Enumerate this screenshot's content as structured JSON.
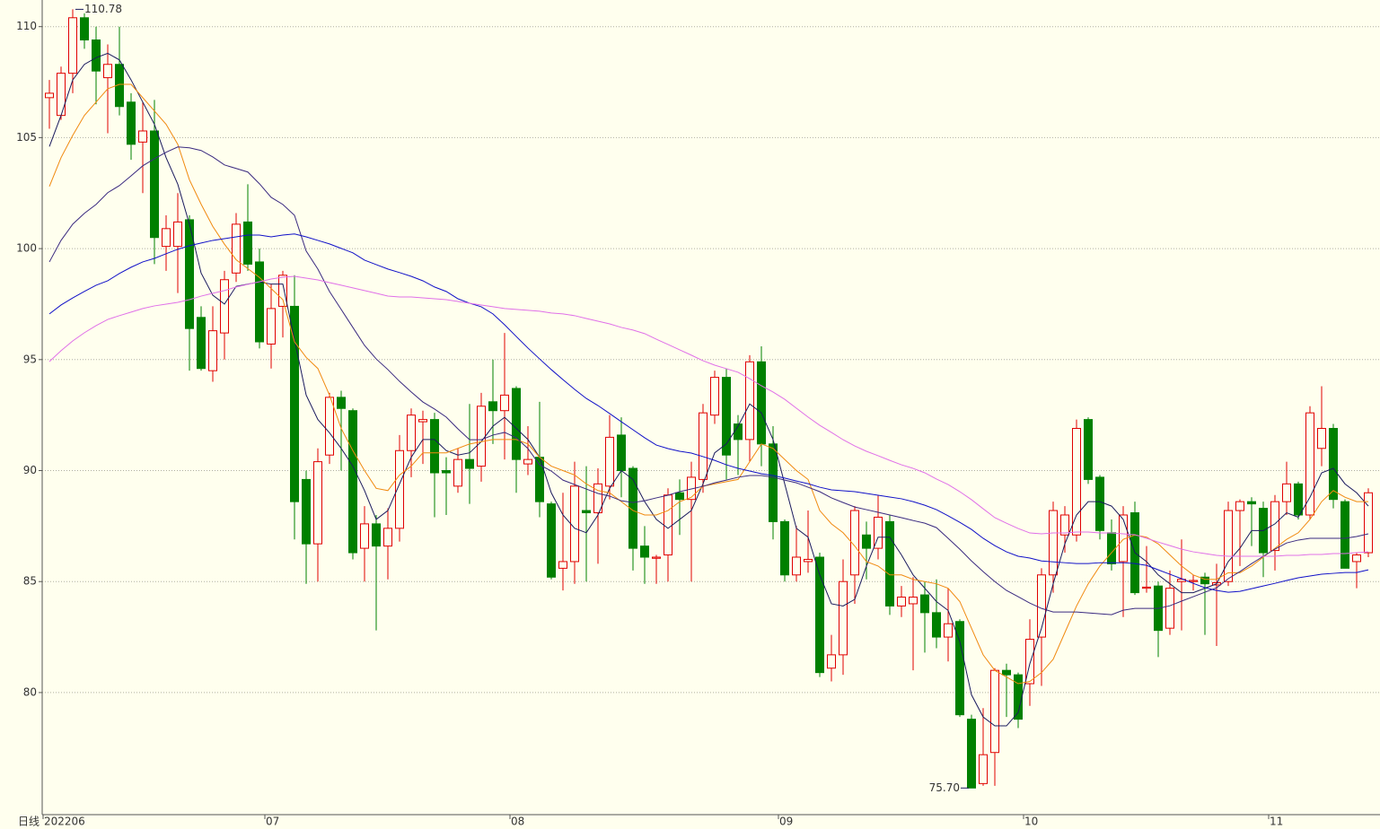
{
  "chart_data": {
    "type": "candlestick",
    "period_label": "日线",
    "categories": [
      "202206",
      null,
      null,
      null,
      null,
      null,
      null,
      null,
      null,
      null,
      null,
      null,
      null,
      null,
      null,
      null,
      null,
      null,
      null,
      "07",
      null,
      null,
      null,
      null,
      null,
      null,
      null,
      null,
      null,
      null,
      null,
      null,
      null,
      null,
      null,
      null,
      null,
      null,
      null,
      null,
      "08",
      null,
      null,
      null,
      null,
      null,
      null,
      null,
      null,
      null,
      null,
      null,
      null,
      null,
      null,
      null,
      null,
      null,
      null,
      null,
      null,
      null,
      null,
      "09",
      null,
      null,
      null,
      null,
      null,
      null,
      null,
      null,
      null,
      null,
      null,
      null,
      null,
      null,
      null,
      null,
      null,
      null,
      null,
      null,
      "10",
      null,
      null,
      null,
      null,
      null,
      null,
      null,
      null,
      null,
      null,
      null,
      null,
      null,
      null,
      null,
      null,
      null,
      null,
      null,
      null,
      "11",
      null,
      null,
      null,
      null,
      null,
      null,
      null,
      null
    ],
    "open": [
      106.8,
      106.0,
      107.9,
      110.4,
      109.4,
      107.7,
      108.3,
      106.6,
      104.8,
      105.3,
      100.1,
      100.1,
      101.3,
      96.9,
      94.5,
      96.2,
      98.9,
      101.2,
      99.4,
      95.7,
      97.4,
      97.4,
      89.6,
      86.7,
      90.7,
      93.3,
      92.7,
      86.5,
      87.6,
      86.6,
      87.4,
      90.9,
      92.2,
      92.3,
      90.0,
      89.3,
      90.5,
      90.2,
      93.1,
      92.7,
      93.7,
      90.3,
      90.6,
      88.5,
      85.6,
      85.9,
      88.2,
      88.1,
      89.3,
      91.6,
      90.1,
      86.6,
      86.05,
      86.2,
      89.0,
      88.7,
      89.6,
      92.5,
      94.2,
      92.1,
      91.4,
      94.9,
      91.2,
      87.7,
      85.3,
      85.9,
      86.1,
      81.1,
      81.7,
      85.3,
      87.1,
      86.5,
      87.7,
      83.9,
      84.0,
      84.4,
      83.6,
      82.5,
      83.2,
      78.8,
      75.9,
      77.3,
      81.0,
      80.8,
      80.4,
      82.5,
      85.3,
      87.1,
      87.1,
      92.3,
      89.7,
      87.2,
      85.9,
      88.1,
      84.7,
      84.8,
      82.9,
      85.0,
      85.0,
      85.2,
      84.85,
      85.0,
      88.2,
      88.6,
      88.3,
      86.4,
      88.6,
      89.4,
      88.0,
      91.0,
      91.9,
      88.6,
      85.9,
      86.3
    ],
    "high": [
      107.6,
      108.2,
      110.78,
      110.6,
      110.0,
      109.2,
      110.0,
      107.0,
      106.6,
      106.7,
      101.5,
      102.5,
      101.5,
      97.4,
      97.4,
      99.0,
      101.6,
      102.9,
      100.0,
      98.4,
      99.0,
      98.8,
      90.0,
      91.0,
      93.5,
      93.6,
      92.8,
      88.4,
      88.0,
      88.3,
      91.6,
      92.8,
      92.7,
      92.6,
      90.6,
      91.0,
      93.0,
      93.5,
      95.0,
      96.2,
      93.8,
      92.0,
      93.1,
      88.6,
      89.0,
      90.4,
      90.2,
      90.1,
      92.5,
      92.4,
      90.2,
      87.5,
      86.2,
      89.2,
      89.6,
      90.4,
      93.0,
      94.5,
      94.6,
      92.5,
      95.2,
      95.6,
      92.0,
      87.8,
      87.5,
      88.2,
      86.3,
      82.6,
      86.0,
      88.4,
      87.7,
      88.9,
      88.0,
      84.8,
      85.2,
      85.0,
      85.1,
      84.7,
      83.3,
      79.0,
      79.3,
      81.1,
      81.3,
      80.9,
      83.3,
      85.6,
      88.6,
      88.4,
      92.3,
      92.4,
      89.8,
      87.8,
      88.4,
      88.6,
      86.6,
      85.0,
      85.5,
      86.9,
      85.3,
      85.4,
      85.8,
      88.6,
      88.7,
      88.8,
      88.6,
      88.9,
      90.4,
      89.5,
      92.9,
      93.8,
      92.1,
      88.7,
      86.3,
      89.2
    ],
    "low": [
      105.4,
      105.8,
      107.0,
      109.0,
      106.5,
      105.2,
      106.0,
      104.0,
      102.5,
      99.3,
      99.0,
      98.0,
      94.5,
      94.5,
      94.0,
      95.0,
      98.5,
      99.0,
      95.5,
      94.6,
      96.0,
      86.9,
      84.9,
      85.0,
      90.3,
      90.0,
      86.0,
      85.0,
      82.8,
      85.1,
      86.8,
      89.7,
      90.3,
      87.9,
      88.0,
      89.0,
      88.5,
      89.5,
      91.2,
      90.5,
      89.0,
      89.8,
      87.9,
      85.1,
      84.6,
      84.9,
      85.0,
      85.8,
      88.7,
      88.8,
      85.5,
      84.9,
      84.9,
      85.0,
      87.1,
      85.0,
      89.0,
      92.1,
      89.6,
      89.8,
      90.4,
      90.2,
      86.9,
      85.0,
      85.0,
      85.4,
      80.7,
      80.5,
      80.8,
      84.0,
      85.1,
      86.0,
      83.5,
      83.4,
      81.0,
      81.8,
      82.0,
      81.4,
      78.9,
      75.7,
      75.8,
      75.8,
      78.9,
      78.4,
      79.4,
      80.3,
      84.5,
      86.3,
      86.8,
      89.4,
      86.9,
      85.5,
      83.4,
      84.4,
      84.5,
      81.6,
      82.6,
      82.8,
      84.6,
      82.6,
      82.1,
      84.8,
      85.7,
      86.6,
      85.2,
      85.5,
      88.0,
      87.8,
      87.8,
      90.2,
      88.3,
      85.6,
      84.7,
      86.1
    ],
    "close": [
      107.0,
      107.9,
      110.4,
      109.4,
      108.0,
      108.3,
      106.4,
      104.7,
      105.3,
      100.5,
      100.9,
      101.2,
      96.4,
      94.6,
      96.3,
      98.6,
      101.1,
      99.3,
      95.8,
      97.3,
      98.8,
      88.6,
      86.7,
      90.4,
      93.3,
      92.8,
      86.3,
      87.6,
      86.6,
      87.4,
      90.9,
      92.5,
      92.3,
      89.9,
      89.9,
      90.5,
      90.1,
      92.9,
      92.7,
      93.4,
      90.5,
      90.5,
      88.6,
      85.2,
      85.9,
      89.3,
      88.1,
      89.4,
      91.5,
      90.0,
      86.5,
      86.1,
      86.1,
      88.9,
      88.7,
      89.7,
      92.6,
      94.2,
      90.7,
      91.4,
      94.9,
      91.2,
      87.7,
      85.3,
      86.1,
      86.0,
      80.9,
      81.7,
      85.0,
      88.2,
      86.5,
      87.9,
      83.9,
      84.3,
      84.3,
      83.6,
      82.5,
      83.1,
      79.0,
      75.7,
      77.2,
      81.0,
      80.8,
      78.8,
      82.4,
      85.3,
      88.2,
      88.0,
      91.9,
      89.6,
      87.3,
      85.8,
      88.0,
      84.5,
      84.75,
      82.8,
      84.7,
      85.1,
      85.05,
      84.9,
      84.95,
      88.2,
      88.6,
      88.5,
      86.3,
      88.6,
      89.4,
      88.0,
      92.6,
      91.9,
      88.7,
      85.6,
      86.2,
      89.0
    ],
    "moving_averages": [
      {
        "color": "#1a1a5e",
        "values": [
          104.6,
          106.0,
          107.6,
          108.3,
          108.6,
          108.8,
          108.5,
          107.6,
          106.6,
          105.6,
          104.1,
          102.9,
          101.1,
          98.9,
          97.9,
          97.5,
          98.3,
          98.4,
          98.5,
          98.4,
          98.4,
          95.9,
          93.4,
          92.3,
          91.7,
          91.0,
          90.2,
          89.1,
          87.8,
          88.2,
          89.4,
          90.6,
          91.4,
          91.4,
          90.9,
          90.7,
          90.8,
          91.3,
          92.0,
          92.4,
          91.9,
          91.4,
          90.6,
          89.0,
          88.0,
          87.4,
          87.2,
          88.0,
          89.2,
          90.0,
          89.6,
          88.6,
          87.8,
          87.4,
          87.8,
          88.2,
          89.4,
          90.8,
          91.2,
          92.0,
          93.0,
          92.6,
          91.4,
          89.4,
          87.4,
          87.0,
          85.3,
          84.0,
          83.9,
          84.2,
          85.7,
          87.0,
          87.0,
          86.2,
          85.3,
          84.7,
          84.1,
          83.7,
          82.3,
          79.9,
          78.9,
          78.5,
          78.5,
          79.1,
          81.3,
          82.9,
          84.9,
          86.7,
          88.0,
          88.6,
          88.6,
          88.4,
          87.8,
          86.3,
          85.9,
          85.3,
          84.9,
          84.5,
          84.5,
          84.7,
          84.9,
          85.9,
          86.5,
          87.3,
          87.3,
          87.6,
          88.1,
          87.9,
          88.8,
          89.9,
          90.1,
          89.4,
          89.0,
          88.4
        ]
      },
      {
        "color": "#f08a10",
        "values": [
          102.8,
          104.1,
          105.1,
          106.0,
          106.6,
          107.2,
          107.4,
          107.4,
          106.8,
          106.2,
          105.6,
          104.7,
          103.1,
          102.0,
          101.0,
          100.2,
          99.5,
          99.1,
          98.7,
          98.2,
          97.7,
          95.8,
          95.1,
          94.6,
          93.4,
          91.9,
          90.9,
          90.0,
          89.2,
          89.1,
          89.8,
          90.2,
          90.8,
          90.8,
          90.8,
          91.0,
          91.2,
          91.3,
          91.4,
          91.4,
          91.4,
          91.2,
          90.6,
          90.2,
          90.0,
          89.8,
          89.4,
          89.1,
          89.0,
          88.6,
          88.2,
          88.0,
          88.0,
          88.2,
          88.6,
          88.8,
          89.3,
          89.4,
          89.5,
          89.6,
          90.4,
          91.2,
          91.0,
          90.5,
          90.0,
          89.6,
          88.2,
          87.6,
          87.2,
          86.6,
          85.9,
          85.7,
          85.3,
          85.3,
          85.1,
          85.0,
          84.9,
          84.7,
          84.1,
          82.9,
          81.7,
          81.0,
          80.7,
          80.4,
          80.5,
          80.9,
          81.5,
          82.7,
          83.9,
          84.9,
          85.7,
          86.3,
          86.9,
          87.1,
          87.0,
          86.7,
          86.2,
          85.7,
          85.3,
          85.1,
          85.1,
          85.4,
          85.4,
          85.7,
          86.1,
          86.5,
          86.9,
          87.2,
          87.8,
          88.6,
          89.1,
          88.8,
          88.6,
          88.6
        ]
      },
      {
        "color": "#3a2a80",
        "values": [
          99.4,
          100.37,
          101.1,
          101.59,
          101.99,
          102.52,
          102.84,
          103.28,
          103.73,
          104.05,
          104.34,
          104.58,
          104.54,
          104.42,
          104.13,
          103.77,
          103.61,
          103.45,
          102.92,
          102.31,
          101.99,
          101.5,
          99.89,
          99.08,
          98.07,
          97.26,
          96.45,
          95.64,
          95.03,
          94.55,
          94.02,
          93.54,
          93.09,
          92.77,
          92.41,
          91.88,
          91.39,
          91.39,
          91.6,
          91.72,
          91.48,
          90.99,
          90.26,
          89.98,
          89.57,
          89.37,
          89.17,
          88.97,
          88.85,
          88.64,
          88.56,
          88.64,
          88.77,
          88.89,
          89.05,
          89.17,
          89.29,
          89.45,
          89.57,
          89.7,
          89.78,
          89.78,
          89.7,
          89.57,
          89.45,
          89.25,
          89.05,
          88.77,
          88.56,
          88.36,
          88.24,
          88.12,
          88.0,
          87.88,
          87.75,
          87.63,
          87.43,
          86.95,
          86.46,
          85.93,
          85.45,
          85.0,
          84.6,
          84.32,
          84.03,
          83.79,
          83.63,
          83.63,
          83.63,
          83.59,
          83.55,
          83.51,
          83.71,
          83.79,
          83.79,
          83.79,
          83.91,
          84.12,
          84.32,
          84.52,
          84.72,
          85.13,
          85.45,
          85.81,
          86.14,
          86.46,
          86.74,
          86.87,
          86.95,
          86.95,
          86.95,
          86.95,
          87.03,
          87.15
        ]
      },
      {
        "color": "#1010c8",
        "values": [
          97.06,
          97.46,
          97.78,
          98.07,
          98.35,
          98.55,
          98.88,
          99.16,
          99.4,
          99.56,
          99.77,
          99.97,
          100.13,
          100.25,
          100.37,
          100.45,
          100.53,
          100.61,
          100.61,
          100.53,
          100.61,
          100.66,
          100.53,
          100.37,
          100.21,
          100.01,
          99.81,
          99.48,
          99.28,
          99.08,
          98.92,
          98.75,
          98.55,
          98.27,
          98.07,
          97.74,
          97.54,
          97.38,
          97.06,
          96.57,
          96.04,
          95.52,
          95.03,
          94.55,
          94.1,
          93.66,
          93.25,
          92.93,
          92.57,
          92.2,
          91.84,
          91.48,
          91.15,
          90.99,
          90.87,
          90.79,
          90.63,
          90.46,
          90.26,
          90.1,
          89.98,
          89.86,
          89.78,
          89.66,
          89.53,
          89.41,
          89.25,
          89.13,
          89.09,
          89.05,
          88.97,
          88.89,
          88.81,
          88.73,
          88.6,
          88.44,
          88.24,
          87.96,
          87.67,
          87.35,
          86.95,
          86.62,
          86.34,
          86.14,
          86.06,
          85.93,
          85.89,
          85.85,
          85.81,
          85.81,
          85.85,
          85.85,
          85.85,
          85.81,
          85.73,
          85.53,
          85.33,
          85.13,
          84.92,
          84.72,
          84.6,
          84.52,
          84.56,
          84.68,
          84.8,
          84.92,
          85.05,
          85.17,
          85.25,
          85.33,
          85.37,
          85.41,
          85.41,
          85.53
        ]
      },
      {
        "color": "#e070e8",
        "values": [
          94.91,
          95.4,
          95.84,
          96.21,
          96.53,
          96.81,
          96.98,
          97.14,
          97.3,
          97.42,
          97.5,
          97.58,
          97.7,
          97.86,
          97.99,
          98.11,
          98.27,
          98.39,
          98.51,
          98.63,
          98.71,
          98.75,
          98.67,
          98.59,
          98.47,
          98.35,
          98.23,
          98.11,
          97.99,
          97.86,
          97.82,
          97.82,
          97.78,
          97.74,
          97.7,
          97.62,
          97.54,
          97.46,
          97.38,
          97.3,
          97.26,
          97.22,
          97.18,
          97.1,
          97.06,
          96.98,
          96.85,
          96.73,
          96.61,
          96.45,
          96.33,
          96.17,
          95.92,
          95.68,
          95.44,
          95.2,
          94.95,
          94.75,
          94.59,
          94.43,
          94.14,
          93.82,
          93.54,
          93.21,
          92.81,
          92.41,
          92.04,
          91.72,
          91.39,
          91.11,
          90.87,
          90.67,
          90.46,
          90.26,
          90.1,
          89.9,
          89.62,
          89.37,
          89.05,
          88.69,
          88.28,
          87.88,
          87.63,
          87.39,
          87.19,
          87.15,
          87.19,
          87.19,
          87.23,
          87.23,
          87.19,
          87.19,
          87.15,
          87.11,
          86.95,
          86.78,
          86.62,
          86.46,
          86.34,
          86.26,
          86.18,
          86.14,
          86.14,
          86.14,
          86.14,
          86.14,
          86.18,
          86.18,
          86.22,
          86.22,
          86.26,
          86.26,
          86.3,
          86.34
        ]
      }
    ],
    "up_color": "#e00000",
    "down_color": "#008000",
    "annotations": [
      {
        "value": 110.78,
        "label": "110.78"
      },
      {
        "value": 75.7,
        "label": "75.70"
      }
    ],
    "ylim": [
      74.5,
      111.2
    ],
    "yticks": [
      80,
      85,
      90,
      95,
      100,
      105,
      110
    ],
    "grid": true
  }
}
